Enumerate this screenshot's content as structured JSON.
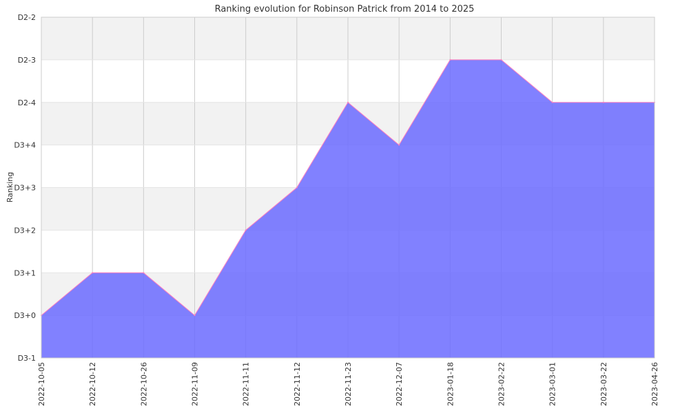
{
  "chart_data": {
    "type": "area",
    "title": "Ranking evolution for Robinson Patrick from 2014 to 2025",
    "xlabel": "",
    "ylabel": "Ranking",
    "y_tick_labels": [
      "D3-1",
      "D3+0",
      "D3+1",
      "D3+2",
      "D3+3",
      "D3+4",
      "D2-4",
      "D2-3",
      "D2-2"
    ],
    "ylim": [
      0,
      8
    ],
    "x": [
      "2022-10-05",
      "2022-10-12",
      "2022-10-26",
      "2022-11-09",
      "2022-11-11",
      "2022-11-12",
      "2022-11-23",
      "2022-12-07",
      "2023-01-18",
      "2023-02-22",
      "2023-03-01",
      "2023-03-22",
      "2023-04-26"
    ],
    "series": [
      {
        "values": [
          "D3+0",
          "D3+1",
          "D3+1",
          "D3+0",
          "D3+2",
          "D3+3",
          "D2-4",
          "D3+4",
          "D2-3",
          "D2-3",
          "D2-4",
          "D2-4",
          "D2-4"
        ]
      }
    ],
    "grid": true,
    "colors": {
      "area_fill": "#6b6bff",
      "area_line": "#ff7fbf",
      "band_alt": "#f2f2f2",
      "grid": "#cccccc"
    }
  }
}
